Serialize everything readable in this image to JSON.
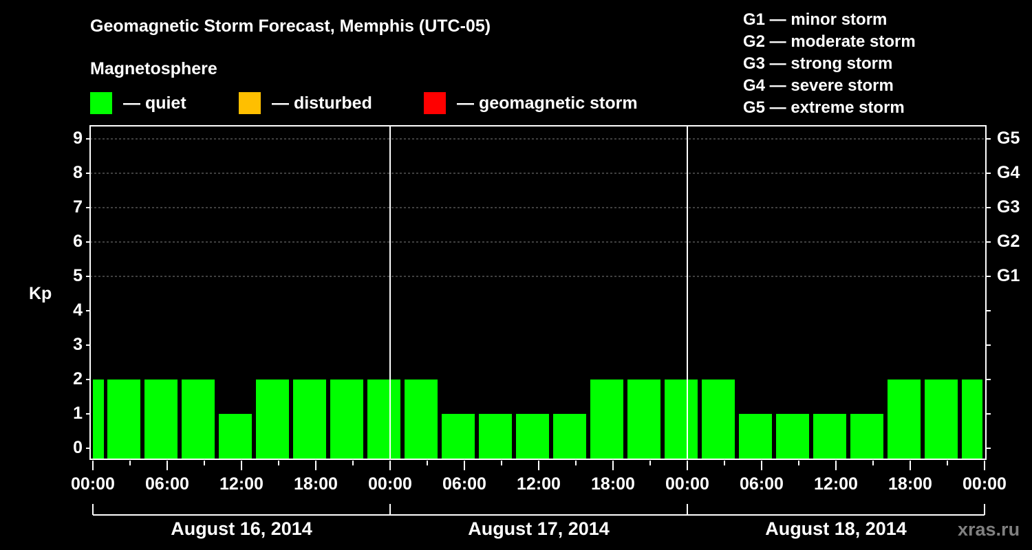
{
  "title": "Geomagnetic Storm Forecast, Memphis (UTC-05)",
  "subtitle": "Magnetosphere",
  "legend": [
    {
      "label": "— quiet",
      "color": "#00ff00"
    },
    {
      "label": "— disturbed",
      "color": "#ffbf00"
    },
    {
      "label": "— geomagnetic storm",
      "color": "#ff0000"
    }
  ],
  "g_scale": [
    "G1 — minor storm",
    "G2 — moderate storm",
    "G3 — strong storm",
    "G4 — severe storm",
    "G5 — extreme storm"
  ],
  "y_axis": {
    "label": "Kp",
    "ticks": [
      "0",
      "1",
      "2",
      "3",
      "4",
      "5",
      "6",
      "7",
      "8",
      "9"
    ]
  },
  "right_axis": {
    "ticks": [
      "G1",
      "G2",
      "G3",
      "G4",
      "G5"
    ]
  },
  "x_axis": {
    "ticks": [
      "00:00",
      "06:00",
      "12:00",
      "18:00",
      "00:00",
      "06:00",
      "12:00",
      "18:00",
      "00:00",
      "06:00",
      "12:00",
      "18:00",
      "00:00"
    ]
  },
  "days": [
    "August 16, 2014",
    "August 17, 2014",
    "August 18, 2014"
  ],
  "watermark": "xras.ru",
  "chart_data": {
    "type": "bar",
    "title": "Geomagnetic Storm Forecast, Memphis (UTC-05)",
    "xlabel": "",
    "ylabel": "Kp",
    "ylim": [
      0,
      9
    ],
    "grid": true,
    "legend": [
      "quiet",
      "disturbed",
      "geomagnetic storm"
    ],
    "categories": [
      "Aug 16 00:00",
      "Aug 16 01:00",
      "Aug 16 04:00",
      "Aug 16 07:00",
      "Aug 16 10:00",
      "Aug 16 13:00",
      "Aug 16 16:00",
      "Aug 16 19:00",
      "Aug 16 22:00",
      "Aug 17 01:00",
      "Aug 17 04:00",
      "Aug 17 07:00",
      "Aug 17 10:00",
      "Aug 17 13:00",
      "Aug 17 16:00",
      "Aug 17 19:00",
      "Aug 17 22:00",
      "Aug 18 01:00",
      "Aug 18 04:00",
      "Aug 18 07:00",
      "Aug 18 10:00",
      "Aug 18 13:00",
      "Aug 18 16:00",
      "Aug 18 19:00",
      "Aug 18 22:00"
    ],
    "values": [
      2,
      2,
      2,
      2,
      1,
      2,
      2,
      2,
      2,
      2,
      1,
      1,
      1,
      1,
      2,
      2,
      2,
      2,
      1,
      1,
      1,
      1,
      2,
      2,
      2
    ],
    "bar_color": "#00ff00"
  }
}
